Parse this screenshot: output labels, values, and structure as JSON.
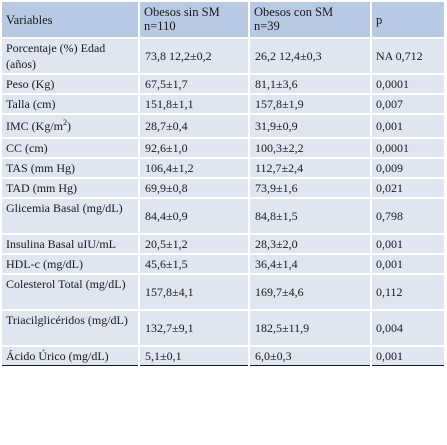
{
  "header": {
    "variables": "Variables",
    "group1_line1": "Obesos sin SM",
    "group1_line2": "n=110",
    "group2_line1": "Obesos con SM",
    "group2_line2": "n=39",
    "p": "p"
  },
  "rows": [
    {
      "label": "Porcentaje (%) Edad (años)",
      "g1": "73,8 12,2±0,2",
      "g2": "26,2 12,4±0,3",
      "p": "NA 0,712"
    },
    {
      "label": "Peso (Kg)",
      "g1": "67,5±1,7",
      "g2": "81,1±3,6",
      "p": "0,0001"
    },
    {
      "label": "Talla (cm)",
      "g1": "151,8±1,1",
      "g2": "157,8±1,9",
      "p": "0,007"
    },
    {
      "label": "IMC (Kg/m",
      "label_sup": "2",
      "label_tail": ")",
      "g1": "28,7±0,4",
      "g2": "31,9±0,9",
      "p": "0,001"
    },
    {
      "label": "CC (cm)",
      "g1": "92,6±1,0",
      "g2": "100,3±2,2",
      "p": "0,0001"
    },
    {
      "label": "TAS (mm Hg)",
      "g1": "106,4±1,2",
      "g2": "112,7±2,4",
      "p": "0,009"
    },
    {
      "label": "TAD (mm Hg)",
      "g1": "69,9±0,8",
      "g2": "73,9±1,6",
      "p": "0,021"
    },
    {
      "label": "Glicemia Basal (mg/dL)",
      "g1": "84,4±0,9",
      "g2": "84,8±1,5",
      "p": "0,798"
    },
    {
      "label": "Insulina Basal uIU/mL",
      "g1": "20,5±1,2",
      "g2": "28,3±2,0",
      "p": "0,001"
    },
    {
      "label": "HDL-c (mg/dL)",
      "g1": "45,6±1,5",
      "g2": "36,4±1,4",
      "p": "0,001"
    },
    {
      "label": "Colesterol Total (mg/dL)",
      "g1": "157,8±4,1",
      "g2": "169,7±4,6",
      "p": "0,112"
    },
    {
      "label": "Triacilglicéridos (mg/dL)",
      "g1": "132,7±9,1",
      "g2": "182,5±11,9",
      "p": "0,004"
    },
    {
      "label": "Ácido Úrico (mg/dL)",
      "g1": "5,1±0,1",
      "g2": "6,0±0,3",
      "p": "0,001"
    }
  ],
  "colors": {
    "header_bg": "#b8c9e4",
    "row_bg": "#dfe6f1"
  }
}
